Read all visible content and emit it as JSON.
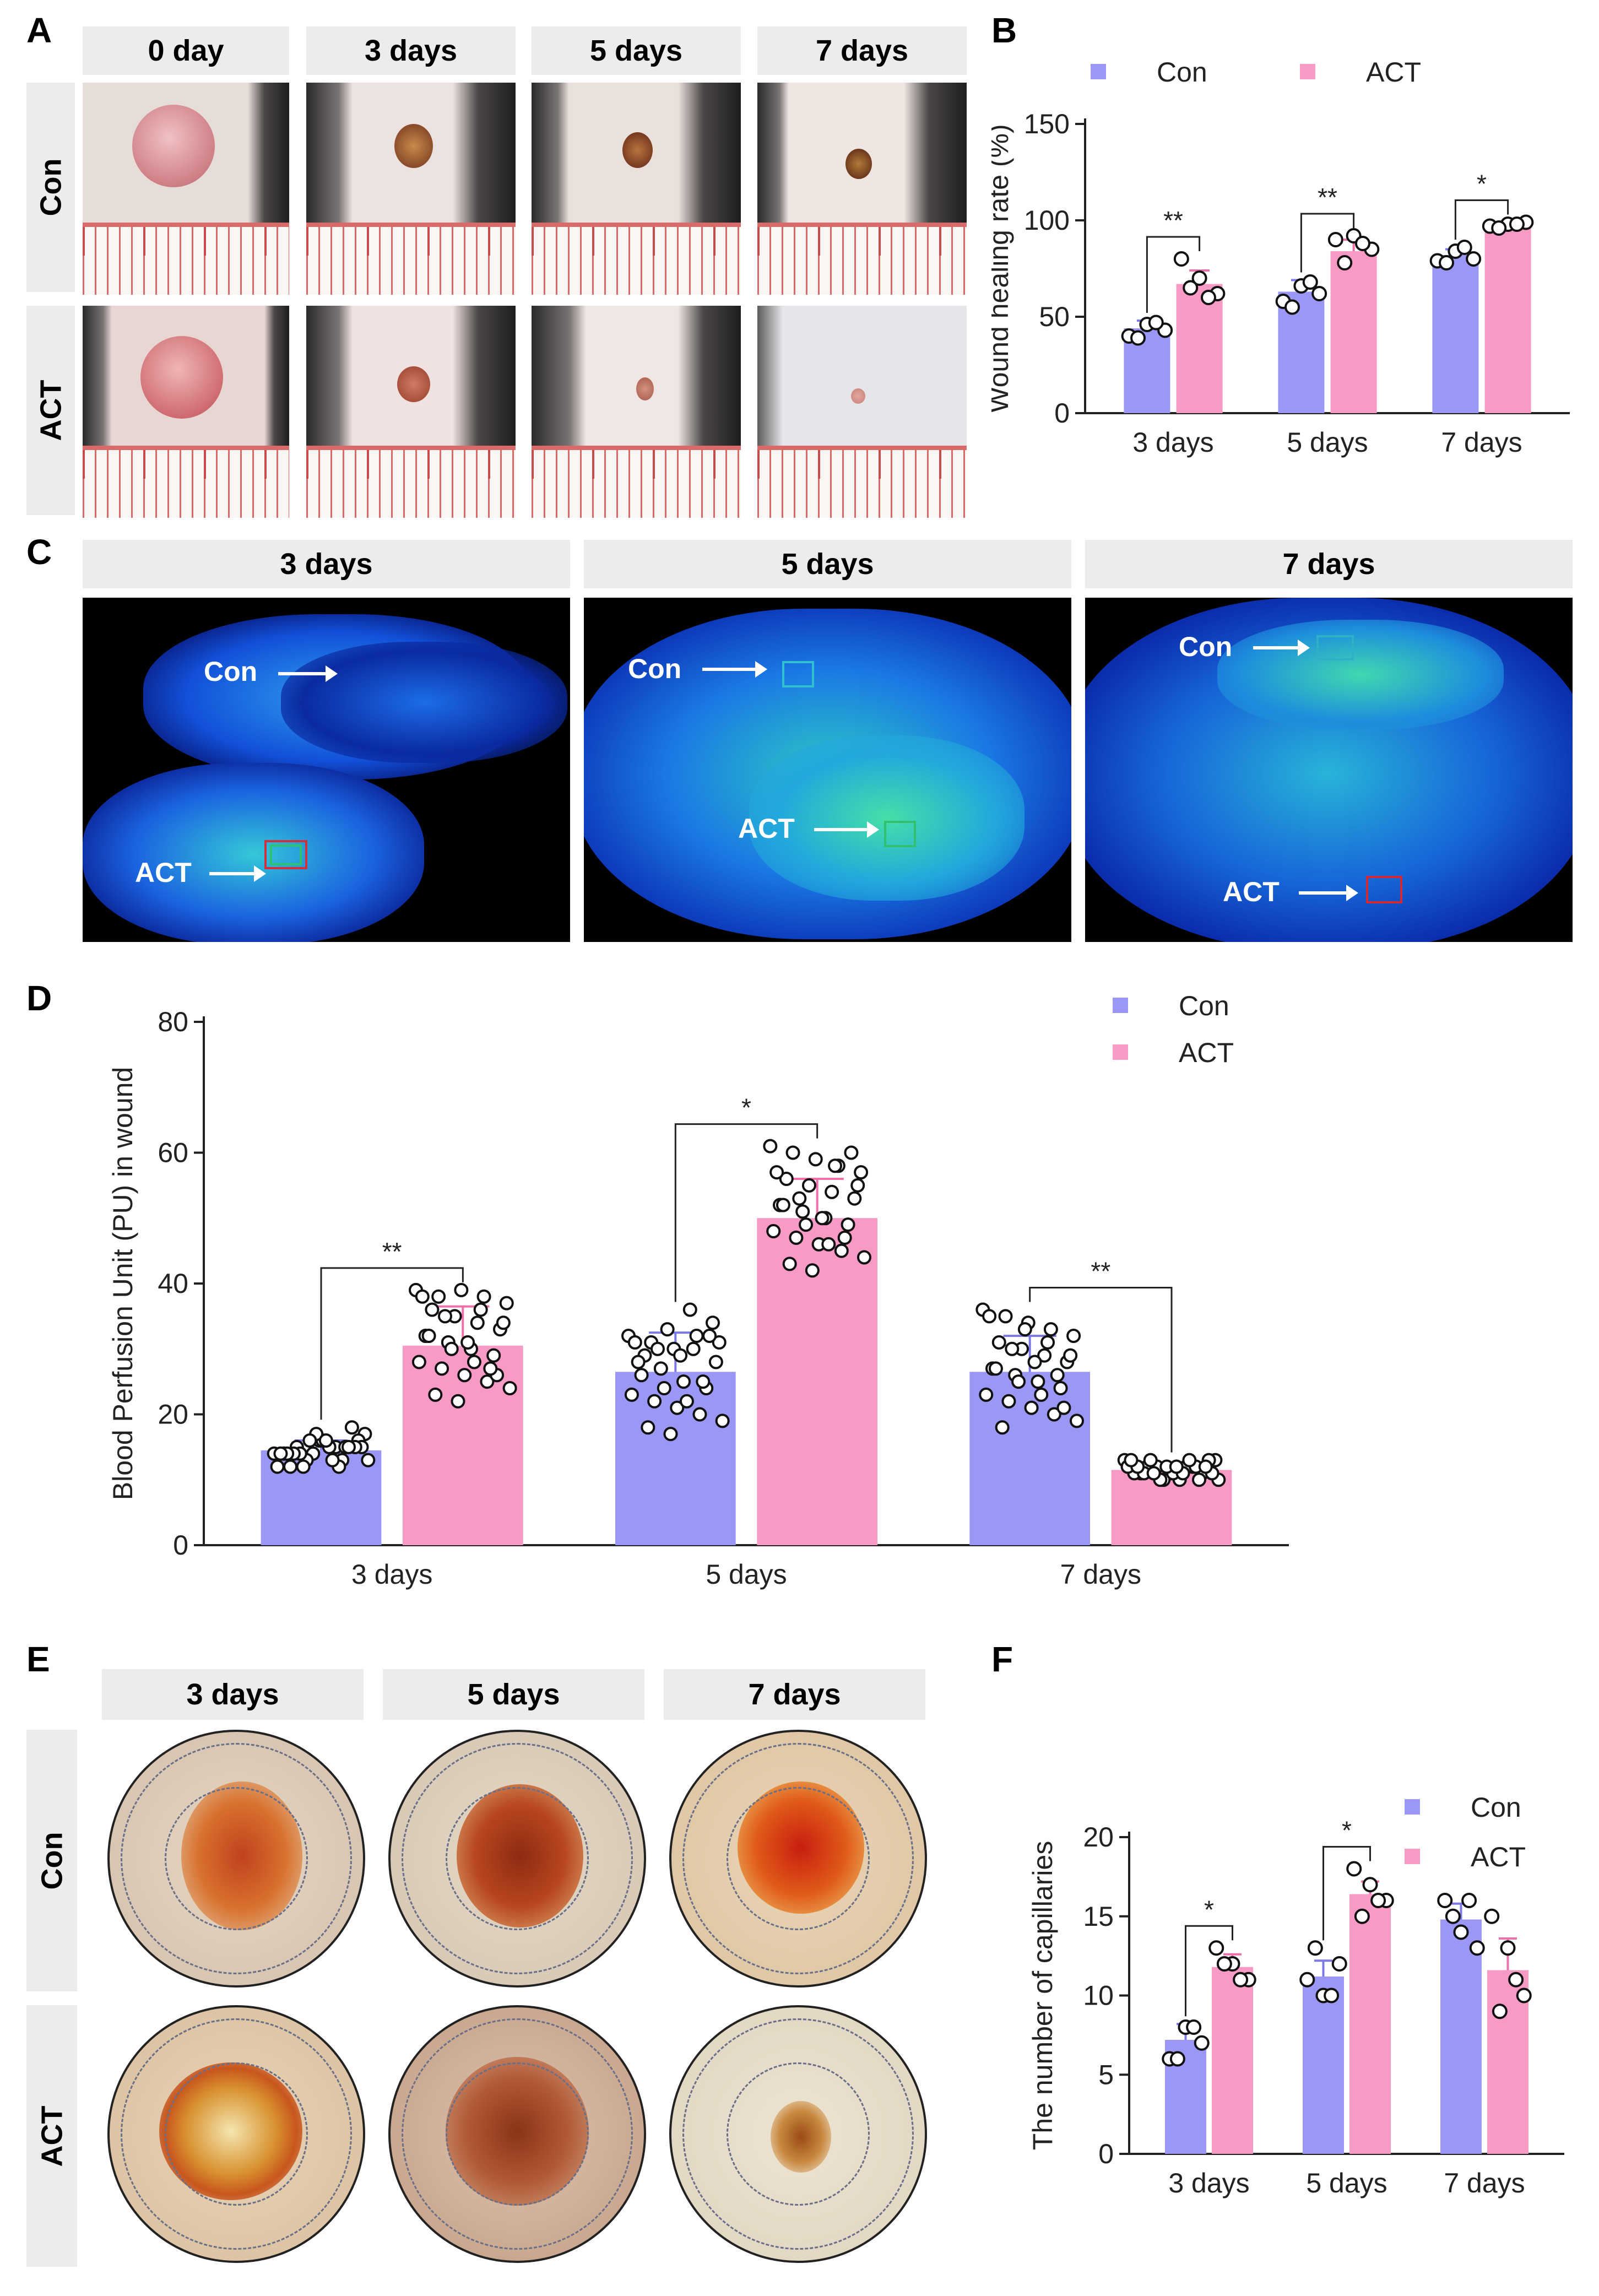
{
  "panels": {
    "A": {
      "letter": "A",
      "col_headers": [
        "0 day",
        "3 days",
        "5 days",
        "7 days"
      ],
      "row_headers": [
        "Con",
        "ACT"
      ]
    },
    "C": {
      "letter": "C",
      "col_headers": [
        "3 days",
        "5 days",
        "7 days"
      ],
      "labels": {
        "con": "Con",
        "act": "ACT"
      }
    },
    "E": {
      "letter": "E",
      "col_headers": [
        "3 days",
        "5 days",
        "7 days"
      ],
      "row_headers": [
        "Con",
        "ACT"
      ]
    }
  },
  "colors": {
    "con": "#9a98f4",
    "act": "#f89ac6",
    "con_err": "#7b79e8",
    "act_err": "#ee6fa9"
  },
  "chart_data": [
    {
      "panel": "B",
      "letter": "B",
      "type": "bar",
      "categories": [
        "3 days",
        "5 days",
        "7 days"
      ],
      "ylabel": "Wound healing rate (%)",
      "xlabel": "",
      "ylim": [
        0,
        150
      ],
      "yticks": [
        0,
        50,
        100,
        150
      ],
      "legend": [
        "Con",
        "ACT"
      ],
      "legend_position": "top",
      "series": [
        {
          "name": "Con",
          "values": [
            44,
            63,
            82
          ],
          "err": [
            4,
            6,
            3
          ],
          "points": [
            [
              40,
              46,
              43,
              39,
              47
            ],
            [
              58,
              66,
              62,
              55,
              68
            ],
            [
              79,
              84,
              80,
              78,
              86
            ]
          ]
        },
        {
          "name": "ACT",
          "values": [
            67,
            84,
            98
          ],
          "err": [
            7,
            6,
            1
          ],
          "points": [
            [
              80,
              70,
              62,
              65,
              60
            ],
            [
              90,
              92,
              85,
              78,
              88
            ],
            [
              97,
              98,
              99,
              96,
              98
            ]
          ]
        }
      ],
      "significance": [
        {
          "category": 0,
          "label": "**"
        },
        {
          "category": 1,
          "label": "**"
        },
        {
          "category": 2,
          "label": "*"
        }
      ]
    },
    {
      "panel": "D",
      "letter": "D",
      "type": "bar",
      "categories": [
        "3 days",
        "5 days",
        "7 days"
      ],
      "ylabel": "Blood Perfusion Unit (PU) in wound",
      "xlabel": "",
      "ylim": [
        0,
        80
      ],
      "yticks": [
        0,
        20,
        40,
        60,
        80
      ],
      "legend": [
        "Con",
        "ACT"
      ],
      "legend_position": "top-right",
      "series": [
        {
          "name": "Con",
          "values": [
            14.5,
            26.5,
            26.5
          ],
          "err": [
            1.5,
            6,
            5.5
          ],
          "points": [
            [
              14,
              15,
              16,
              13,
              17,
              12,
              14,
              15,
              16,
              14,
              13,
              15,
              18,
              12,
              14,
              16,
              15,
              13,
              14,
              17,
              12,
              15,
              14,
              16,
              13,
              15,
              14,
              12,
              16,
              15
            ],
            [
              32,
              31,
              30,
              32,
              31,
              29,
              33,
              36,
              34,
              28,
              27,
              25,
              24,
              23,
              22,
              21,
              20,
              19,
              18,
              17,
              30,
              28,
              26,
              24,
              22,
              32,
              31,
              30,
              29,
              25
            ],
            [
              36,
              35,
              34,
              33,
              32,
              31,
              30,
              29,
              28,
              27,
              26,
              25,
              24,
              23,
              22,
              21,
              20,
              19,
              18,
              33,
              31,
              29,
              27,
              25,
              23,
              21,
              35,
              30,
              28,
              26
            ]
          ]
        },
        {
          "name": "ACT",
          "values": [
            30.5,
            50,
            11.5
          ],
          "err": [
            6,
            6,
            1
          ],
          "points": [
            [
              39,
              38,
              39,
              38,
              37,
              36,
              35,
              34,
              33,
              32,
              31,
              30,
              29,
              28,
              27,
              26,
              25,
              24,
              23,
              22,
              36,
              34,
              32,
              30,
              28,
              26,
              38,
              35,
              31,
              27
            ],
            [
              61,
              60,
              59,
              58,
              57,
              56,
              55,
              54,
              53,
              52,
              51,
              50,
              49,
              48,
              47,
              46,
              45,
              44,
              43,
              42,
              58,
              55,
              52,
              49,
              46,
              60,
              57,
              53,
              50,
              47
            ],
            [
              13,
              12,
              11,
              12,
              13,
              11,
              10,
              12,
              13,
              11,
              12,
              10,
              11,
              12,
              13,
              11,
              12,
              10,
              11,
              12,
              13,
              11,
              12,
              10,
              11,
              12,
              13,
              11,
              12,
              10
            ]
          ]
        }
      ],
      "significance": [
        {
          "category": 0,
          "label": "**"
        },
        {
          "category": 1,
          "label": "*"
        },
        {
          "category": 2,
          "label": "**"
        }
      ]
    },
    {
      "panel": "F",
      "letter": "F",
      "type": "bar",
      "categories": [
        "3 days",
        "5 days",
        "7 days"
      ],
      "ylabel": "The number of capillaries",
      "xlabel": "",
      "ylim": [
        0,
        20
      ],
      "yticks": [
        0,
        5,
        10,
        15,
        20
      ],
      "legend": [
        "Con",
        "ACT"
      ],
      "legend_position": "top-right",
      "series": [
        {
          "name": "Con",
          "values": [
            7.2,
            11.2,
            14.8
          ],
          "err": [
            1,
            1,
            1
          ],
          "points": [
            [
              6,
              8,
              7,
              6,
              8
            ],
            [
              11,
              10,
              12,
              13,
              10
            ],
            [
              16,
              14,
              13,
              15,
              16
            ]
          ]
        },
        {
          "name": "ACT",
          "values": [
            11.8,
            16.4,
            11.6
          ],
          "err": [
            0.8,
            0.8,
            2
          ],
          "points": [
            [
              13,
              12,
              11,
              12,
              11
            ],
            [
              18,
              17,
              16,
              15,
              16
            ],
            [
              15,
              13,
              10,
              9,
              11
            ]
          ]
        }
      ],
      "significance": [
        {
          "category": 0,
          "label": "*"
        },
        {
          "category": 1,
          "label": "*"
        }
      ]
    }
  ]
}
